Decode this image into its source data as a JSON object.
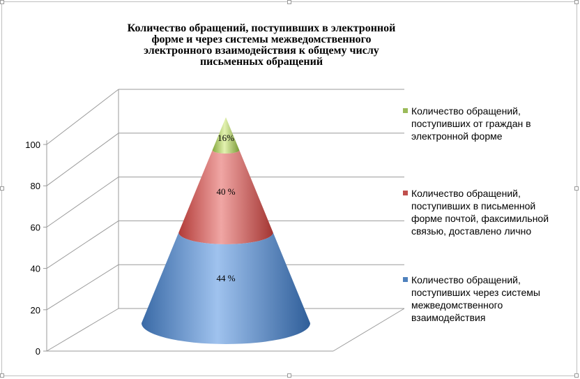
{
  "chart_data": {
    "type": "pyramid",
    "title": "Количество обращений, поступивших в электронной форме и через системы межведомственного  электронного взаимодействия к общему числу письменных обращений",
    "ylim": [
      0,
      100
    ],
    "yticks": [
      "0",
      "20",
      "40",
      "60",
      "80",
      "100"
    ],
    "grid": true,
    "legend_position": "right",
    "segments": [
      {
        "name": "Количество обращений, поступивших  через системы межведомственного взаимодействия",
        "value": 44,
        "label": "44 %",
        "color": "#4f81bd"
      },
      {
        "name": "Количество обращений, поступивших  в письменной форме почтой, факсимильной  связью, доставлено лично",
        "value": 40,
        "label": "40 %",
        "color": "#c0504d"
      },
      {
        "name": "Количество обращений, поступивших  от граждан в электронной  форме",
        "value": 16,
        "label": "16%",
        "color": "#9bbb59"
      }
    ]
  }
}
